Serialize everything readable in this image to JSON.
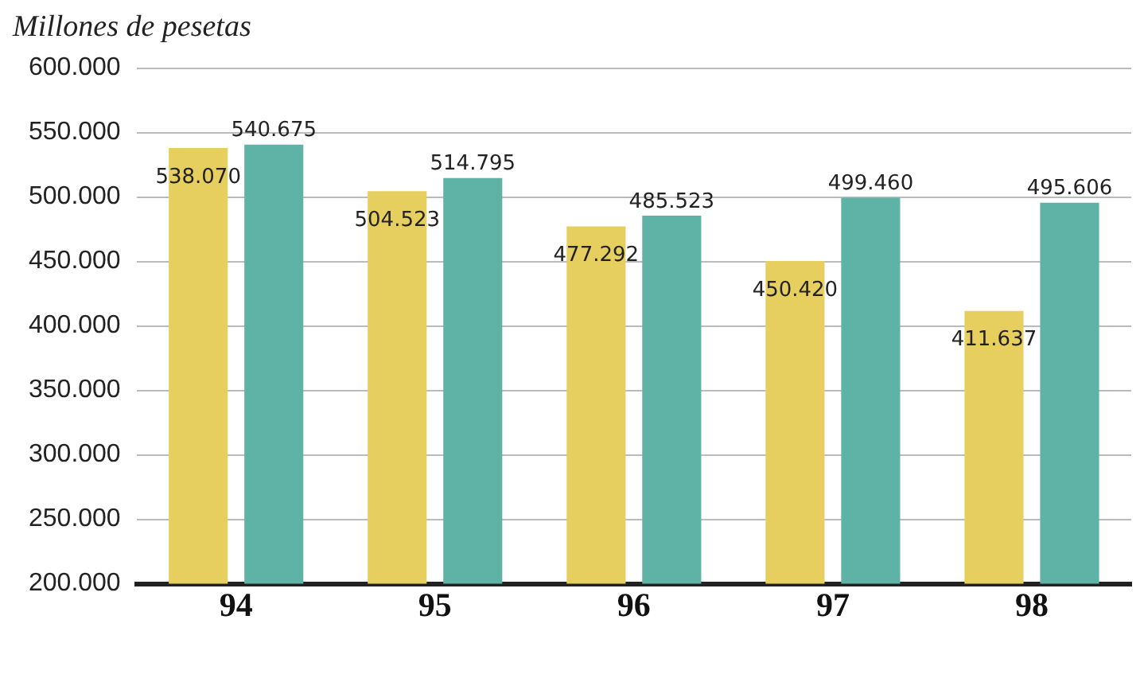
{
  "chart_data": {
    "type": "bar",
    "title": "Millones de pesetas",
    "categories": [
      "94",
      "95",
      "96",
      "97",
      "98"
    ],
    "series": [
      {
        "color": "#e6cf5e",
        "values": [
          538070,
          504523,
          477292,
          450420,
          411637
        ],
        "value_labels": [
          "538.070",
          "504.523",
          "477.292",
          "450.420",
          "411.637"
        ]
      },
      {
        "color": "#5fb3a6",
        "values": [
          540675,
          514795,
          485523,
          499460,
          495606
        ],
        "value_labels": [
          "540.675",
          "514.795",
          "485.523",
          "499.460",
          "495.606"
        ]
      }
    ],
    "ylim": [
      200000,
      600000
    ],
    "yticks": [
      {
        "value": 200000,
        "label": "200.000"
      },
      {
        "value": 250000,
        "label": "250.000"
      },
      {
        "value": 300000,
        "label": "300.000"
      },
      {
        "value": 350000,
        "label": "350.000"
      },
      {
        "value": 400000,
        "label": "400.000"
      },
      {
        "value": 450000,
        "label": "450.000"
      },
      {
        "value": 500000,
        "label": "500.000"
      },
      {
        "value": 550000,
        "label": "550.000"
      },
      {
        "value": 600000,
        "label": "600.000"
      }
    ],
    "grid": "y"
  }
}
